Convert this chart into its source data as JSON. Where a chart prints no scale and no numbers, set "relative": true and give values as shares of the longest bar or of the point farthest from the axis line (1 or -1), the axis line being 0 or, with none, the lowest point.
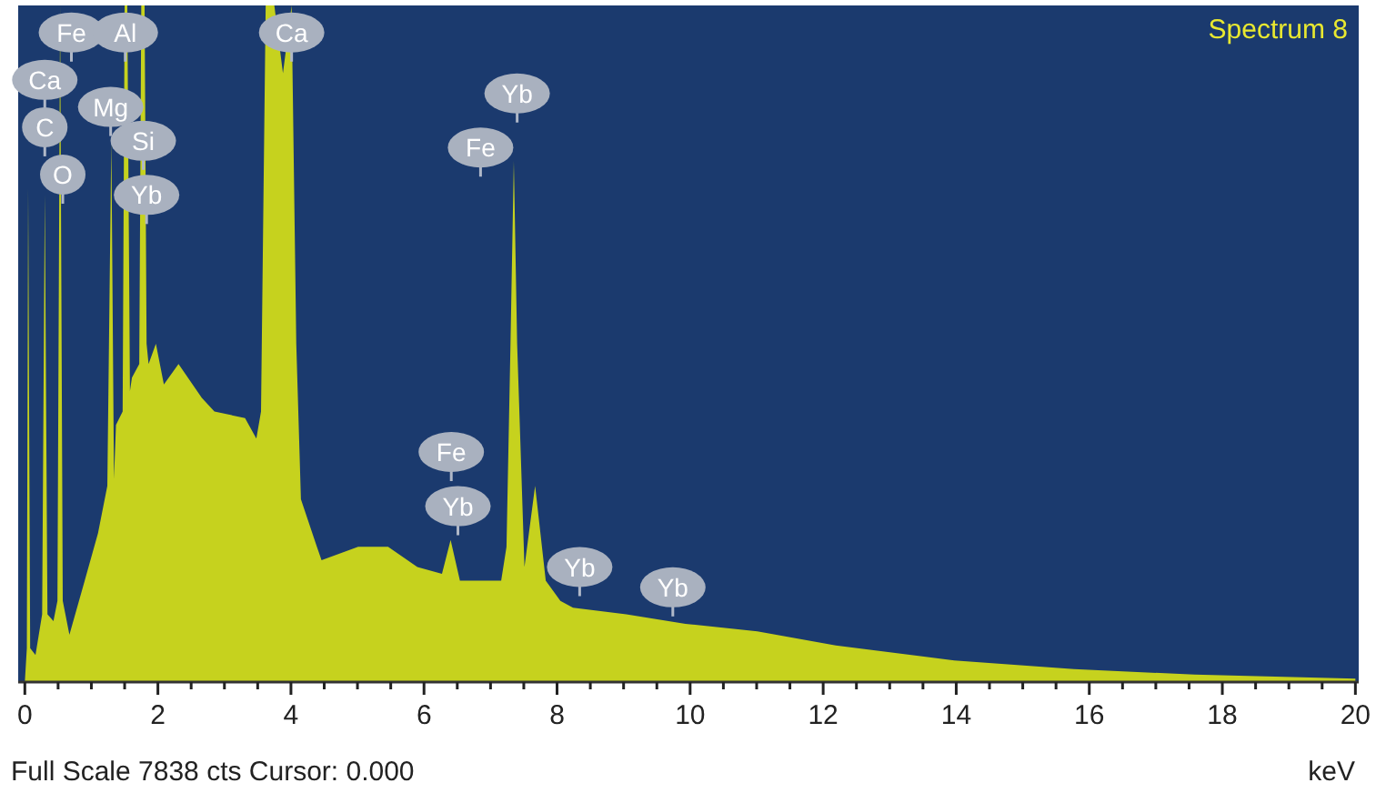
{
  "chart_data": {
    "type": "area",
    "title": "Spectrum 8",
    "xlabel": "keV",
    "relative": true,
    "color": "#c6d21e",
    "x": [
      0,
      0.03,
      0.05,
      0.08,
      0.16,
      0.26,
      0.3,
      0.34,
      0.43,
      0.49,
      0.53,
      0.57,
      0.67,
      0.9,
      1.1,
      1.24,
      1.3,
      1.34,
      1.37,
      1.47,
      1.5,
      1.54,
      1.58,
      1.61,
      1.72,
      1.75,
      1.8,
      1.83,
      1.86,
      1.97,
      2.09,
      2.31,
      2.66,
      2.85,
      3.31,
      3.48,
      3.55,
      3.62,
      3.75,
      3.88,
      4.01,
      4.08,
      4.15,
      4.39,
      4.46,
      5.01,
      5.46,
      5.9,
      6.27,
      6.4,
      6.54,
      7.16,
      7.24,
      7.3,
      7.35,
      7.4,
      7.51,
      7.67,
      7.83,
      8.05,
      8.24,
      9.04,
      9.93,
      11.01,
      12.19,
      13.97,
      15.77,
      17.58,
      20
    ],
    "values": [
      0,
      0.05,
      0.73,
      0.05,
      0.04,
      0.1,
      0.72,
      0.1,
      0.09,
      0.12,
      1,
      0.12,
      0.07,
      0.15,
      0.22,
      0.29,
      0.8,
      0.3,
      0.38,
      0.4,
      1,
      1,
      0.43,
      0.45,
      0.47,
      1,
      1,
      0.5,
      0.47,
      0.5,
      0.44,
      0.47,
      0.42,
      0.4,
      0.39,
      0.36,
      0.4,
      1,
      1,
      0.9,
      1,
      0.5,
      0.27,
      0.2,
      0.18,
      0.2,
      0.2,
      0.17,
      0.16,
      0.21,
      0.15,
      0.15,
      0.2,
      0.5,
      0.77,
      0.5,
      0.17,
      0.29,
      0.15,
      0.12,
      0.11,
      0.1,
      0.086,
      0.075,
      0.054,
      0.032,
      0.019,
      0.011,
      0.005
    ],
    "xlim": [
      -0.1,
      20.05
    ],
    "xticks": [
      0,
      {
        "value": 0.5,
        "label": null
      },
      {
        "value": 1,
        "label": null
      },
      {
        "value": 1.5,
        "label": null
      },
      2,
      {
        "value": 2.5,
        "label": null
      },
      {
        "value": 3,
        "label": null
      },
      {
        "value": 3.5,
        "label": null
      },
      4,
      {
        "value": 4.5,
        "label": null
      },
      {
        "value": 5,
        "label": null
      },
      {
        "value": 5.5,
        "label": null
      },
      6,
      {
        "value": 6.5,
        "label": null
      },
      {
        "value": 7,
        "label": null
      },
      {
        "value": 7.5,
        "label": null
      },
      8,
      {
        "value": 8.5,
        "label": null
      },
      {
        "value": 9,
        "label": null
      },
      {
        "value": 9.5,
        "label": null
      },
      10,
      {
        "value": 10.5,
        "label": null
      },
      {
        "value": 11,
        "label": null
      },
      {
        "value": 11.5,
        "label": null
      },
      12,
      {
        "value": 12.5,
        "label": null
      },
      {
        "value": 13,
        "label": null
      },
      {
        "value": 13.5,
        "label": null
      },
      14,
      {
        "value": 14.5,
        "label": null
      },
      {
        "value": 15,
        "label": null
      },
      {
        "value": 15.5,
        "label": null
      },
      16,
      {
        "value": 16.5,
        "label": null
      },
      {
        "value": 17,
        "label": null
      },
      {
        "value": 17.5,
        "label": null
      },
      18,
      {
        "value": 18.5,
        "label": null
      },
      {
        "value": 19,
        "label": null
      },
      {
        "value": 19.5,
        "label": null
      },
      20
    ],
    "annotations": [
      {
        "text": "Fe",
        "x": 0.7,
        "y": 0.96
      },
      {
        "text": "Al",
        "x": 1.51,
        "y": 0.96
      },
      {
        "text": "Ca",
        "x": 0.3,
        "y": 0.89
      },
      {
        "text": "Mg",
        "x": 1.29,
        "y": 0.85
      },
      {
        "text": "C",
        "x": 0.3,
        "y": 0.82
      },
      {
        "text": "Si",
        "x": 1.78,
        "y": 0.8
      },
      {
        "text": "O",
        "x": 0.57,
        "y": 0.75
      },
      {
        "text": "Yb",
        "x": 1.83,
        "y": 0.72
      },
      {
        "text": "Ca",
        "x": 4.01,
        "y": 0.96
      },
      {
        "text": "Yb",
        "x": 7.4,
        "y": 0.87
      },
      {
        "text": "Fe",
        "x": 6.85,
        "y": 0.79
      },
      {
        "text": "Fe",
        "x": 6.41,
        "y": 0.34
      },
      {
        "text": "Yb",
        "x": 6.51,
        "y": 0.26
      },
      {
        "text": "Yb",
        "x": 8.34,
        "y": 0.17
      },
      {
        "text": "Yb",
        "x": 9.74,
        "y": 0.14
      },
      "Full Scale 7838 cts Cursor: 0.000"
    ]
  }
}
